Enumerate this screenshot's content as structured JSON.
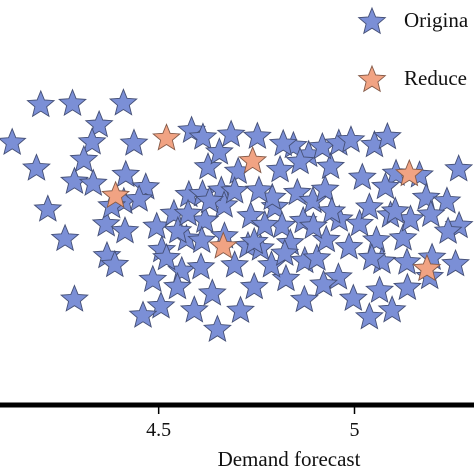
{
  "chart_data": {
    "type": "scatter",
    "title": "",
    "xlabel": "Demand forecast",
    "ylabel": "",
    "xlim": [
      4.1,
      5.3
    ],
    "ylim": [
      0,
      1
    ],
    "x_ticks": [
      4.5,
      5
    ],
    "x_tick_labels": [
      "4.5",
      "5"
    ],
    "grid": false,
    "legend_placement": "top-right",
    "series": [
      {
        "name": "Origina",
        "color": "#7b8fd6",
        "marker": "star-icon",
        "points": [
          [
            4.126,
            0.645
          ],
          [
            4.199,
            0.739
          ],
          [
            4.28,
            0.742
          ],
          [
            4.188,
            0.581
          ],
          [
            4.285,
            0.548
          ],
          [
            4.261,
            0.406
          ],
          [
            4.217,
            0.479
          ],
          [
            4.348,
            0.689
          ],
          [
            4.33,
            0.646
          ],
          [
            4.309,
            0.602
          ],
          [
            4.41,
            0.743
          ],
          [
            4.437,
            0.643
          ],
          [
            4.416,
            0.565
          ],
          [
            4.411,
            0.498
          ],
          [
            4.366,
            0.442
          ],
          [
            4.368,
            0.363
          ],
          [
            4.414,
            0.425
          ],
          [
            4.388,
            0.341
          ],
          [
            4.285,
            0.255
          ],
          [
            4.333,
            0.543
          ],
          [
            4.38,
            0.487
          ],
          [
            4.467,
            0.534
          ],
          [
            4.45,
            0.504
          ],
          [
            4.495,
            0.436
          ],
          [
            4.508,
            0.378
          ],
          [
            4.559,
            0.326
          ],
          [
            4.608,
            0.335
          ],
          [
            4.571,
            0.406
          ],
          [
            4.539,
            0.468
          ],
          [
            4.577,
            0.515
          ],
          [
            4.612,
            0.517
          ],
          [
            4.618,
            0.451
          ],
          [
            4.668,
            0.412
          ],
          [
            4.694,
            0.34
          ],
          [
            4.728,
            0.388
          ],
          [
            4.76,
            0.382
          ],
          [
            4.797,
            0.485
          ],
          [
            4.815,
            0.438
          ],
          [
            4.836,
            0.395
          ],
          [
            4.869,
            0.45
          ],
          [
            4.873,
            0.351
          ],
          [
            4.904,
            0.357
          ],
          [
            4.928,
            0.403
          ],
          [
            4.986,
            0.385
          ],
          [
            4.961,
            0.454
          ],
          [
            5.013,
            0.443
          ],
          [
            5.056,
            0.402
          ],
          [
            5.07,
            0.349
          ],
          [
            5.124,
            0.407
          ],
          [
            5.198,
            0.359
          ],
          [
            5.143,
            0.454
          ],
          [
            5.092,
            0.464
          ],
          [
            5.02,
            0.558
          ],
          [
            4.939,
            0.585
          ],
          [
            4.883,
            0.615
          ],
          [
            4.844,
            0.637
          ],
          [
            4.81,
            0.577
          ],
          [
            4.79,
            0.508
          ],
          [
            4.756,
            0.526
          ],
          [
            4.703,
            0.573
          ],
          [
            4.66,
            0.526
          ],
          [
            4.626,
            0.584
          ],
          [
            4.584,
            0.675
          ],
          [
            4.613,
            0.658
          ],
          [
            4.655,
            0.621
          ],
          [
            4.685,
            0.665
          ],
          [
            4.752,
            0.66
          ],
          [
            4.818,
            0.642
          ],
          [
            4.861,
            0.597
          ],
          [
            4.918,
            0.634
          ],
          [
            4.96,
            0.643
          ],
          [
            4.991,
            0.651
          ],
          [
            5.051,
            0.639
          ],
          [
            5.084,
            0.659
          ],
          [
            5.106,
            0.568
          ],
          [
            5.166,
            0.564
          ],
          [
            5.183,
            0.508
          ],
          [
            5.236,
            0.499
          ],
          [
            5.267,
            0.438
          ],
          [
            5.239,
            0.424
          ],
          [
            5.258,
            0.343
          ],
          [
            5.192,
            0.311
          ],
          [
            5.135,
            0.284
          ],
          [
            5.096,
            0.228
          ],
          [
            5.064,
            0.277
          ],
          [
            5.038,
            0.211
          ],
          [
            4.997,
            0.257
          ],
          [
            4.959,
            0.31
          ],
          [
            4.921,
            0.292
          ],
          [
            4.872,
            0.254
          ],
          [
            4.825,
            0.306
          ],
          [
            4.788,
            0.34
          ],
          [
            4.744,
            0.286
          ],
          [
            4.709,
            0.227
          ],
          [
            4.65,
            0.18
          ],
          [
            4.637,
            0.27
          ],
          [
            4.591,
            0.228
          ],
          [
            4.548,
            0.286
          ],
          [
            4.506,
            0.238
          ],
          [
            4.46,
            0.215
          ],
          [
            4.485,
            0.304
          ],
          [
            4.52,
            0.358
          ],
          [
            4.549,
            0.425
          ],
          [
            4.575,
            0.468
          ],
          [
            4.61,
            0.401
          ],
          [
            4.667,
            0.489
          ],
          [
            4.694,
            0.524
          ],
          [
            4.735,
            0.462
          ],
          [
            4.771,
            0.44
          ],
          [
            4.854,
            0.52
          ],
          [
            4.894,
            0.5
          ],
          [
            4.925,
            0.528
          ],
          [
            4.942,
            0.474
          ],
          [
            5.038,
            0.484
          ],
          [
            5.079,
            0.535
          ],
          [
            5.134,
            0.347
          ],
          [
            5.195,
            0.466
          ],
          [
            5.266,
            0.579
          ],
          [
            5.104,
            0.474
          ],
          [
            5.044,
            0.358
          ],
          [
            4.895,
            0.436
          ],
          [
            4.822,
            0.369
          ],
          [
            4.744,
            0.398
          ],
          [
            4.63,
            0.5
          ]
        ]
      },
      {
        "name": "Reduce",
        "color": "#f1a383",
        "marker": "star-icon",
        "points": [
          [
            4.52,
            0.656
          ],
          [
            4.74,
            0.599
          ],
          [
            4.39,
            0.513
          ],
          [
            4.665,
            0.387
          ],
          [
            5.14,
            0.567
          ],
          [
            5.185,
            0.331
          ]
        ]
      }
    ]
  }
}
